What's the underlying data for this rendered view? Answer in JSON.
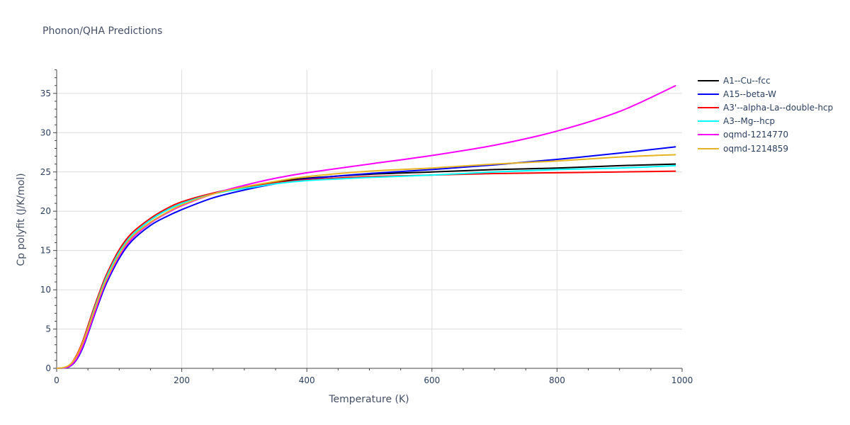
{
  "title": "Phonon/QHA Predictions",
  "chart_data": {
    "type": "line",
    "title": "Phonon/QHA Predictions",
    "xlabel": "Temperature (K)",
    "ylabel": "Cp polyfit (J/K/mol)",
    "xlim": [
      0,
      1000
    ],
    "ylim": [
      0,
      38
    ],
    "xticks": [
      0,
      200,
      400,
      600,
      800,
      1000
    ],
    "yticks": [
      0,
      5,
      10,
      15,
      20,
      25,
      30,
      35
    ],
    "grid": true,
    "legend_position": "right",
    "x": [
      0,
      10,
      20,
      30,
      40,
      50,
      60,
      70,
      80,
      100,
      120,
      150,
      175,
      200,
      250,
      300,
      350,
      400,
      500,
      600,
      700,
      800,
      900,
      990
    ],
    "series": [
      {
        "name": "A1--Cu--fcc",
        "color": "#000000",
        "values": [
          0,
          0.05,
          0.3,
          1.2,
          2.8,
          5.0,
          7.4,
          9.6,
          11.6,
          14.8,
          16.9,
          18.9,
          20.1,
          21.0,
          22.3,
          23.1,
          23.7,
          24.2,
          24.7,
          25.0,
          25.3,
          25.5,
          25.8,
          26.0
        ]
      },
      {
        "name": "A15--beta-W",
        "color": "#0000ff",
        "values": [
          0,
          0.03,
          0.2,
          0.9,
          2.3,
          4.4,
          6.7,
          8.9,
          10.9,
          14.0,
          16.2,
          18.2,
          19.3,
          20.2,
          21.7,
          22.7,
          23.5,
          24.1,
          24.8,
          25.3,
          25.9,
          26.6,
          27.4,
          28.2
        ]
      },
      {
        "name": "A3'--alpha-La--double-hcp",
        "color": "#ff0000",
        "values": [
          0,
          0.06,
          0.35,
          1.4,
          3.1,
          5.4,
          7.8,
          10.0,
          12.0,
          15.1,
          17.2,
          19.1,
          20.3,
          21.2,
          22.3,
          23.0,
          23.6,
          24.0,
          24.4,
          24.6,
          24.8,
          24.9,
          25.0,
          25.1
        ]
      },
      {
        "name": "A3--Mg--hcp",
        "color": "#00ffff",
        "values": [
          0,
          0.05,
          0.3,
          1.2,
          2.9,
          5.1,
          7.5,
          9.7,
          11.7,
          14.8,
          16.9,
          18.9,
          20.1,
          21.0,
          22.2,
          22.9,
          23.5,
          23.9,
          24.3,
          24.6,
          25.0,
          25.3,
          25.5,
          25.8
        ]
      },
      {
        "name": "oqmd-1214770",
        "color": "#ff00ff",
        "values": [
          0,
          0.05,
          0.25,
          1.0,
          2.5,
          4.6,
          6.9,
          9.2,
          11.2,
          14.3,
          16.5,
          18.5,
          19.7,
          20.7,
          22.2,
          23.3,
          24.2,
          24.9,
          26.0,
          27.1,
          28.4,
          30.2,
          32.7,
          36.0
        ]
      },
      {
        "name": "oqmd-1214859",
        "color": "#e6b422",
        "values": [
          0,
          0.08,
          0.4,
          1.3,
          2.9,
          5.0,
          7.3,
          9.5,
          11.4,
          14.5,
          16.7,
          18.6,
          19.8,
          20.8,
          22.2,
          23.1,
          23.8,
          24.4,
          25.1,
          25.5,
          26.0,
          26.4,
          26.9,
          27.2
        ]
      }
    ]
  },
  "axes": {
    "x_tick_labels": [
      "0",
      "200",
      "400",
      "600",
      "800",
      "1000"
    ],
    "y_tick_labels": [
      "0",
      "5",
      "10",
      "15",
      "20",
      "25",
      "30",
      "35"
    ]
  },
  "legend": {
    "items": [
      {
        "label": "A1--Cu--fcc",
        "color": "#000000"
      },
      {
        "label": "A15--beta-W",
        "color": "#0000ff"
      },
      {
        "label": "A3'--alpha-La--double-hcp",
        "color": "#ff0000"
      },
      {
        "label": "A3--Mg--hcp",
        "color": "#00ffff"
      },
      {
        "label": "oqmd-1214770",
        "color": "#ff00ff"
      },
      {
        "label": "oqmd-1214859",
        "color": "#e6b422"
      }
    ]
  }
}
